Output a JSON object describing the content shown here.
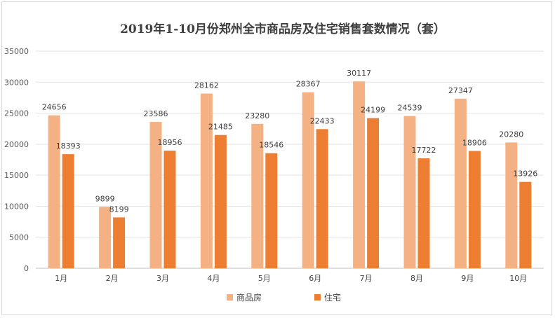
{
  "chart_data": {
    "type": "bar",
    "title": "2019年1-10月份郑州全市商品房及住宅销售套数情况（套）",
    "categories": [
      "1月",
      "2月",
      "3月",
      "4月",
      "5月",
      "6月",
      "7月",
      "8月",
      "9月",
      "10月"
    ],
    "series": [
      {
        "name": "商品房",
        "color": "#f4b183",
        "values": [
          24656,
          9899,
          23586,
          28162,
          23280,
          28367,
          30117,
          24539,
          27347,
          20280
        ]
      },
      {
        "name": "住宅",
        "color": "#ed7d31",
        "values": [
          18393,
          8199,
          18956,
          21485,
          18546,
          22433,
          24199,
          17722,
          18906,
          13926
        ]
      }
    ],
    "ylim": [
      0,
      35000
    ],
    "yticks": [
      0,
      5000,
      10000,
      15000,
      20000,
      25000,
      30000,
      35000
    ],
    "grid": true,
    "legend": "bottom",
    "data_labels": true
  }
}
